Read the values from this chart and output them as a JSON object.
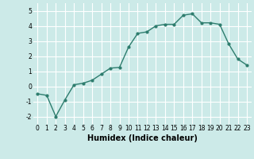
{
  "x": [
    0,
    1,
    2,
    3,
    4,
    5,
    6,
    7,
    8,
    9,
    10,
    11,
    12,
    13,
    14,
    15,
    16,
    17,
    18,
    19,
    20,
    21,
    22,
    23
  ],
  "y": [
    -0.5,
    -0.6,
    -2.0,
    -0.9,
    0.1,
    0.2,
    0.4,
    0.8,
    1.2,
    1.25,
    2.6,
    3.5,
    3.6,
    4.0,
    4.1,
    4.1,
    4.7,
    4.8,
    4.2,
    4.2,
    4.1,
    2.8,
    1.8,
    1.4
  ],
  "line_color": "#2e7d6e",
  "marker": "o",
  "markersize": 2,
  "linewidth": 1.0,
  "xlabel": "Humidex (Indice chaleur)",
  "xlabel_fontsize": 7,
  "xlabel_fontweight": "bold",
  "bg_color": "#cceae8",
  "grid_color": "#ffffff",
  "ylim": [
    -2.5,
    5.5
  ],
  "xlim": [
    -0.5,
    23.5
  ],
  "yticks": [
    -2,
    -1,
    0,
    1,
    2,
    3,
    4,
    5
  ],
  "xticks": [
    0,
    1,
    2,
    3,
    4,
    5,
    6,
    7,
    8,
    9,
    10,
    11,
    12,
    13,
    14,
    15,
    16,
    17,
    18,
    19,
    20,
    21,
    22,
    23
  ],
  "tick_fontsize": 5.5
}
